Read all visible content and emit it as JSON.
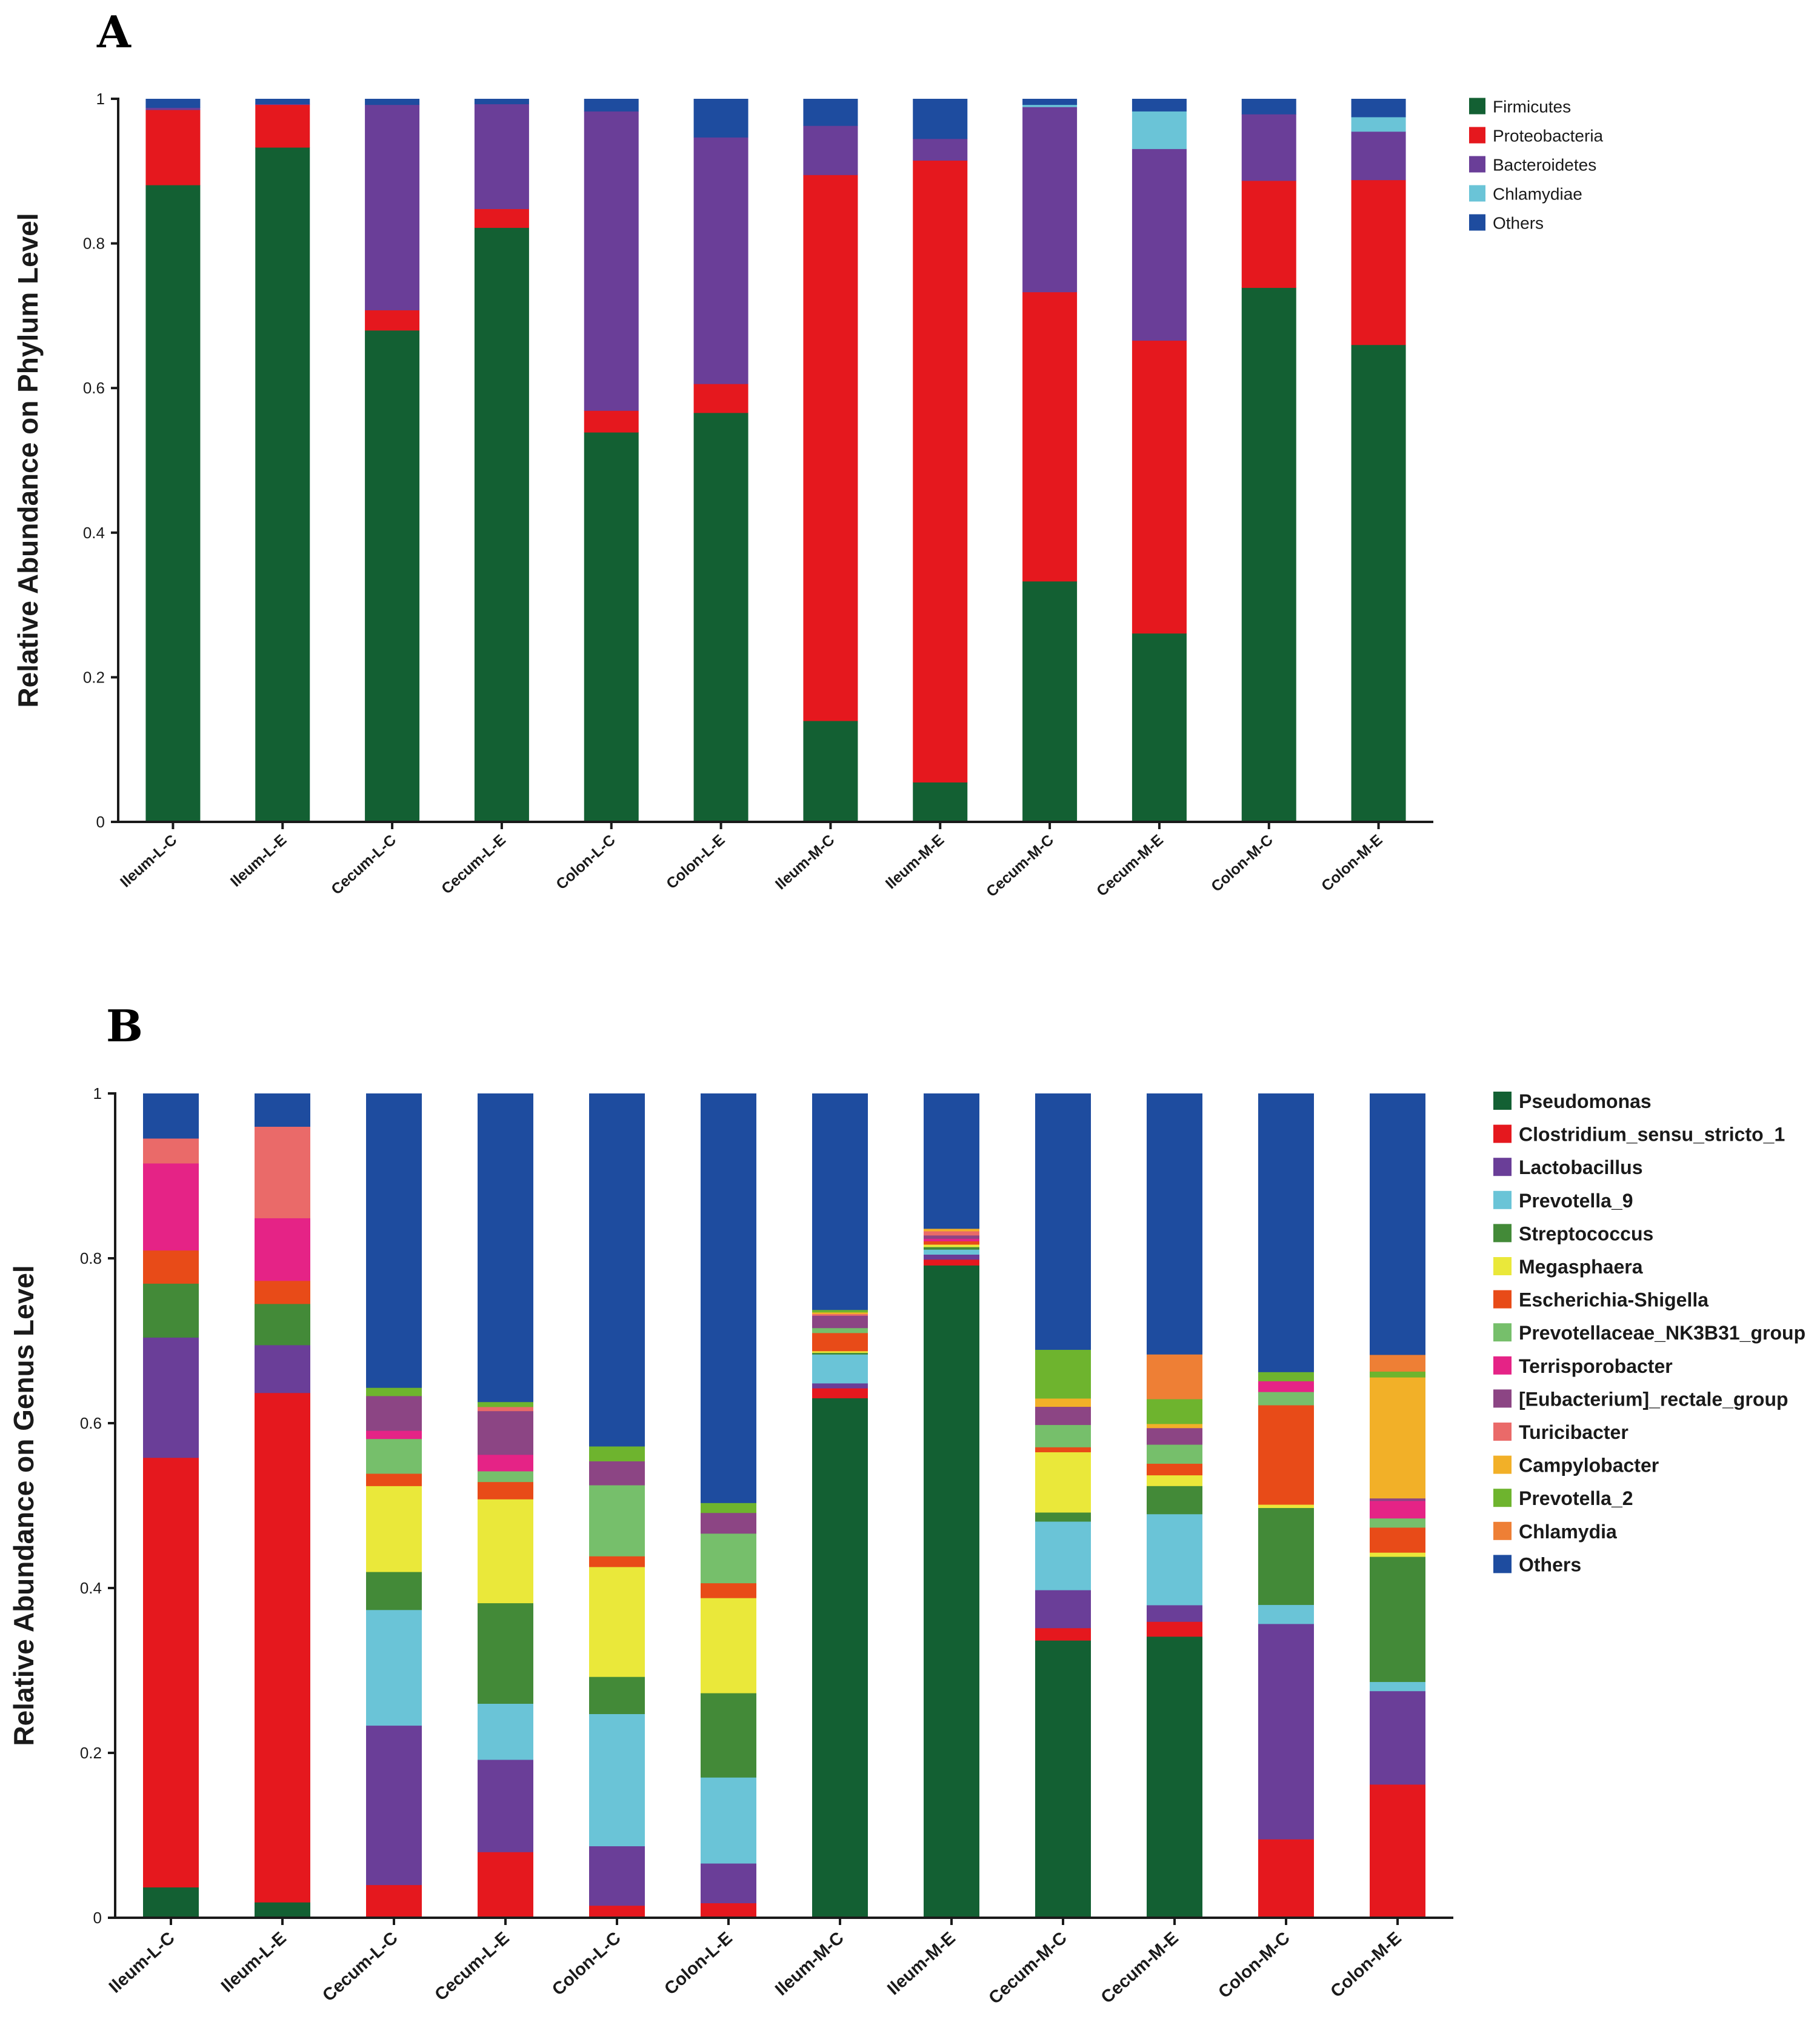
{
  "chart_data": [
    {
      "type": "bar",
      "panel": "A",
      "ylabel": "Relative Abundance on  Phylum Level",
      "ylim": [
        0,
        1
      ],
      "yticks": [
        "0",
        "0.2",
        "0.4",
        "0.6",
        "0.8",
        "1"
      ],
      "categories": [
        "Ileum-L-C",
        "Ileum-L-E",
        "Cecum-L-C",
        "Cecum-L-E",
        "Colon-L-C",
        "Colon-L-E",
        "Ileum-M-C",
        "Ileum-M-E",
        "Cecum-M-C",
        "Cecum-M-E",
        "Colon-M-C",
        "Colon-M-E"
      ],
      "series": [
        {
          "name": "Firmicutes",
          "color": "#136033",
          "values": [
            0.881,
            0.933,
            0.68,
            0.822,
            0.539,
            0.566,
            0.14,
            0.055,
            0.333,
            0.261,
            0.739,
            0.66
          ]
        },
        {
          "name": "Proteobacteria",
          "color": "#e5181e",
          "values": [
            0.104,
            0.059,
            0.028,
            0.026,
            0.03,
            0.04,
            0.755,
            0.86,
            0.4,
            0.405,
            0.148,
            0.228
          ]
        },
        {
          "name": "Bacteroidetes",
          "color": "#6a3e98",
          "values": [
            0.003,
            0.001,
            0.284,
            0.145,
            0.414,
            0.341,
            0.068,
            0.03,
            0.256,
            0.265,
            0.092,
            0.067
          ]
        },
        {
          "name": "Chlamydiae",
          "color": "#6ac4d7",
          "values": [
            0.0,
            0.0,
            0.0,
            0.0,
            0.0,
            0.0,
            0.0,
            0.0,
            0.003,
            0.052,
            0.0,
            0.02
          ]
        },
        {
          "name": "Others",
          "color": "#1e4c9f",
          "values": [
            0.012,
            0.007,
            0.008,
            0.007,
            0.017,
            0.053,
            0.037,
            0.055,
            0.008,
            0.017,
            0.021,
            0.025
          ]
        }
      ]
    },
    {
      "type": "bar",
      "panel": "B",
      "ylabel": "Relative Abundance on Genus Level",
      "ylim": [
        0,
        1
      ],
      "yticks": [
        "0",
        "0.2",
        "0.4",
        "0.6",
        "0.8",
        "1"
      ],
      "categories": [
        "Ileum-L-C",
        "Ileum-L-E",
        "Cecum-L-C",
        "Cecum-L-E",
        "Colon-L-C",
        "Colon-L-E",
        "Ileum-M-C",
        "Ileum-M-E",
        "Cecum-M-C",
        "Cecum-M-E",
        "Colon-M-C",
        "Colon-M-E"
      ],
      "series": [
        {
          "name": "Pseudomonas",
          "color": "#136033",
          "values": [
            0.037,
            0.019,
            0.0,
            0.0,
            0.0,
            0.0,
            0.63,
            0.783,
            0.336,
            0.34,
            0.0,
            0.0
          ]
        },
        {
          "name": "Clostridium_sensu_stricto_1",
          "color": "#e5181e",
          "values": [
            0.518,
            0.618,
            0.04,
            0.08,
            0.015,
            0.018,
            0.012,
            0.007,
            0.015,
            0.018,
            0.095,
            0.16
          ]
        },
        {
          "name": "Lactobacillus",
          "color": "#6a3e98",
          "values": [
            0.145,
            0.058,
            0.193,
            0.112,
            0.072,
            0.048,
            0.006,
            0.006,
            0.046,
            0.02,
            0.26,
            0.112
          ]
        },
        {
          "name": "Prevotella_9",
          "color": "#6ac4d7",
          "values": [
            0.0,
            0.0,
            0.14,
            0.068,
            0.16,
            0.104,
            0.035,
            0.006,
            0.083,
            0.11,
            0.023,
            0.011
          ]
        },
        {
          "name": "Streptococcus",
          "color": "#438a38",
          "values": [
            0.065,
            0.05,
            0.046,
            0.122,
            0.045,
            0.102,
            0.002,
            0.003,
            0.011,
            0.034,
            0.117,
            0.15
          ]
        },
        {
          "name": "Megasphaera",
          "color": "#eae83a",
          "values": [
            0.0,
            0.0,
            0.104,
            0.126,
            0.133,
            0.115,
            0.002,
            0.003,
            0.073,
            0.013,
            0.004,
            0.005
          ]
        },
        {
          "name": "Escherichia-Shigella",
          "color": "#e84b18",
          "values": [
            0.04,
            0.028,
            0.015,
            0.021,
            0.013,
            0.018,
            0.022,
            0.004,
            0.006,
            0.014,
            0.12,
            0.03
          ]
        },
        {
          "name": "Prevotellaceae_NK3B31_group",
          "color": "#76bf6b",
          "values": [
            0.0,
            0.0,
            0.042,
            0.013,
            0.086,
            0.06,
            0.006,
            0.0,
            0.027,
            0.023,
            0.016,
            0.011
          ]
        },
        {
          "name": "Terrisporobacter",
          "color": "#e52386",
          "values": [
            0.105,
            0.076,
            0.01,
            0.02,
            0.0,
            0.0,
            0.0,
            0.003,
            0.0,
            0.0,
            0.013,
            0.021
          ]
        },
        {
          "name": "[Eubacterium]_rectale_group",
          "color": "#8c4584",
          "values": [
            0.0,
            0.0,
            0.042,
            0.053,
            0.029,
            0.025,
            0.015,
            0.004,
            0.022,
            0.02,
            0.0,
            0.003
          ]
        },
        {
          "name": "Turicibacter",
          "color": "#ea6a69",
          "values": [
            0.03,
            0.111,
            0.0,
            0.005,
            0.0,
            0.0,
            0.002,
            0.005,
            0.0,
            0.0,
            0.0,
            0.0
          ]
        },
        {
          "name": "Campylobacter",
          "color": "#f2b028",
          "values": [
            0.0,
            0.0,
            0.0,
            0.0,
            0.0,
            0.0,
            0.002,
            0.003,
            0.01,
            0.005,
            0.0,
            0.145
          ]
        },
        {
          "name": "Prevotella_2",
          "color": "#6eb42e",
          "values": [
            0.0,
            0.0,
            0.01,
            0.006,
            0.018,
            0.012,
            0.003,
            0.0,
            0.059,
            0.03,
            0.011,
            0.007
          ]
        },
        {
          "name": "Chlamydia",
          "color": "#ee7f35",
          "values": [
            0.0,
            0.0,
            0.0,
            0.0,
            0.0,
            0.0,
            0.0,
            0.0,
            0.0,
            0.054,
            0.0,
            0.02
          ]
        },
        {
          "name": "Others",
          "color": "#1e4c9f",
          "values": [
            0.054,
            0.04,
            0.356,
            0.374,
            0.427,
            0.495,
            0.262,
            0.162,
            0.31,
            0.315,
            0.336,
            0.313
          ]
        }
      ]
    }
  ]
}
